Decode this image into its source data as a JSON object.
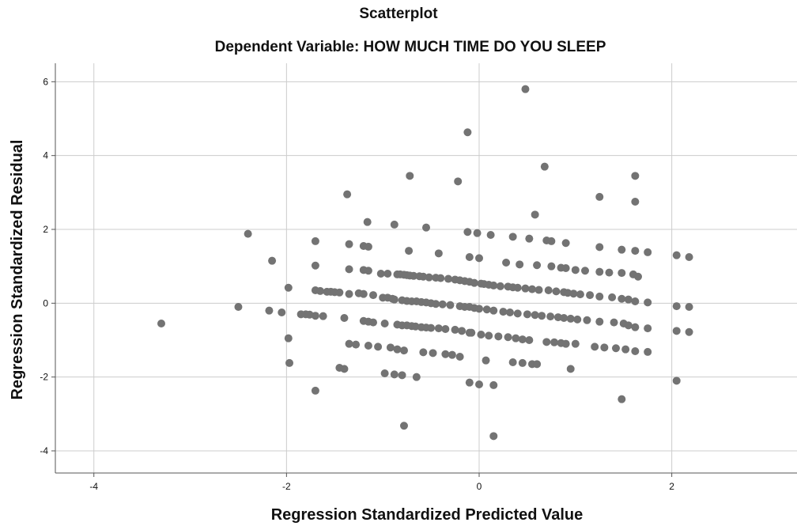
{
  "chart_data": {
    "type": "scatter",
    "title": "Scatterplot",
    "subtitle": "Dependent Variable: HOW MUCH TIME DO YOU SLEEP",
    "xlabel": "Regression Standardized Predicted Value",
    "ylabel": "Regression Standardized Residual",
    "xlim": [
      -4.4,
      3.3
    ],
    "ylim": [
      -4.6,
      6.5
    ],
    "x_ticks": [
      -4,
      -2,
      0,
      2
    ],
    "y_ticks": [
      -4,
      -2,
      0,
      2,
      4,
      6
    ],
    "x_tick_labels": [
      "-4",
      "-2",
      "0",
      "2"
    ],
    "y_tick_labels": [
      "-4",
      "-2",
      "0",
      "2",
      "4",
      "6"
    ],
    "grid": true,
    "marker_color": "#737373",
    "grid_color": "#cccccc",
    "axis_color": "#555555",
    "points": [
      [
        -3.3,
        -0.55
      ],
      [
        -2.5,
        -0.1
      ],
      [
        -2.4,
        1.88
      ],
      [
        -2.18,
        -0.2
      ],
      [
        -2.15,
        1.15
      ],
      [
        -2.05,
        -0.25
      ],
      [
        -1.98,
        0.42
      ],
      [
        -1.98,
        -0.95
      ],
      [
        -1.97,
        -1.62
      ],
      [
        -1.85,
        -0.3
      ],
      [
        -1.8,
        -0.3
      ],
      [
        -1.76,
        -0.31
      ],
      [
        -1.7,
        1.68
      ],
      [
        -1.7,
        1.02
      ],
      [
        -1.7,
        0.35
      ],
      [
        -1.7,
        -0.34
      ],
      [
        -1.7,
        -2.37
      ],
      [
        -1.65,
        0.33
      ],
      [
        -1.62,
        -0.35
      ],
      [
        -1.58,
        0.31
      ],
      [
        -1.54,
        0.31
      ],
      [
        -1.5,
        0.3
      ],
      [
        -1.45,
        0.29
      ],
      [
        -1.4,
        -0.4
      ],
      [
        -1.45,
        -1.75
      ],
      [
        -1.4,
        -1.78
      ],
      [
        -1.37,
        2.95
      ],
      [
        -1.35,
        1.6
      ],
      [
        -1.35,
        0.92
      ],
      [
        -1.35,
        0.25
      ],
      [
        -1.35,
        -1.1
      ],
      [
        -1.28,
        -1.12
      ],
      [
        -1.25,
        0.27
      ],
      [
        -1.2,
        0.25
      ],
      [
        -1.2,
        0.9
      ],
      [
        -1.2,
        1.55
      ],
      [
        -1.2,
        -0.48
      ],
      [
        -1.15,
        0.88
      ],
      [
        -1.15,
        1.53
      ],
      [
        -1.15,
        -0.5
      ],
      [
        -1.15,
        -1.15
      ],
      [
        -1.16,
        2.2
      ],
      [
        -1.1,
        0.22
      ],
      [
        -1.1,
        -0.52
      ],
      [
        -1.05,
        -1.18
      ],
      [
        -1.02,
        0.8
      ],
      [
        -1.0,
        0.15
      ],
      [
        -0.98,
        -0.55
      ],
      [
        -0.95,
        0.8
      ],
      [
        -0.98,
        -1.9
      ],
      [
        -0.95,
        0.15
      ],
      [
        -0.92,
        -1.2
      ],
      [
        -0.9,
        0.12
      ],
      [
        -0.88,
        -1.93
      ],
      [
        -0.88,
        0.1
      ],
      [
        -0.88,
        2.13
      ],
      [
        -0.85,
        0.78
      ],
      [
        -0.85,
        -0.58
      ],
      [
        -0.85,
        -1.25
      ],
      [
        -0.82,
        0.78
      ],
      [
        -0.8,
        0.08
      ],
      [
        -0.8,
        -0.6
      ],
      [
        -0.8,
        -1.95
      ],
      [
        -0.78,
        0.77
      ],
      [
        -0.78,
        -1.28
      ],
      [
        -0.78,
        -3.32
      ],
      [
        -0.75,
        0.76
      ],
      [
        -0.75,
        0.06
      ],
      [
        -0.75,
        -0.6
      ],
      [
        -0.73,
        1.42
      ],
      [
        -0.72,
        3.45
      ],
      [
        -0.72,
        0.75
      ],
      [
        -0.7,
        0.05
      ],
      [
        -0.7,
        -0.62
      ],
      [
        -0.68,
        0.74
      ],
      [
        -0.66,
        -0.63
      ],
      [
        -0.65,
        -2.0
      ],
      [
        -0.65,
        0.05
      ],
      [
        -0.62,
        0.73
      ],
      [
        -0.6,
        -0.65
      ],
      [
        -0.6,
        0.03
      ],
      [
        -0.58,
        -1.33
      ],
      [
        -0.58,
        0.72
      ],
      [
        -0.55,
        2.05
      ],
      [
        -0.55,
        0.02
      ],
      [
        -0.55,
        -0.66
      ],
      [
        -0.52,
        0.7
      ],
      [
        -0.5,
        0.0
      ],
      [
        -0.5,
        -0.67
      ],
      [
        -0.48,
        -1.35
      ],
      [
        -0.45,
        0.69
      ],
      [
        -0.45,
        -0.02
      ],
      [
        -0.42,
        -0.68
      ],
      [
        -0.42,
        1.35
      ],
      [
        -0.4,
        0.68
      ],
      [
        -0.38,
        -0.03
      ],
      [
        -0.35,
        -1.38
      ],
      [
        -0.35,
        -0.7
      ],
      [
        -0.32,
        0.66
      ],
      [
        -0.3,
        -0.05
      ],
      [
        -0.28,
        -1.4
      ],
      [
        -0.25,
        0.64
      ],
      [
        -0.25,
        -0.72
      ],
      [
        -0.22,
        3.3
      ],
      [
        -0.2,
        -0.08
      ],
      [
        -0.2,
        0.62
      ],
      [
        -0.2,
        -1.45
      ],
      [
        -0.18,
        -0.75
      ],
      [
        -0.15,
        0.6
      ],
      [
        -0.15,
        -0.1
      ],
      [
        -0.12,
        4.63
      ],
      [
        -0.12,
        1.93
      ],
      [
        -0.1,
        1.25
      ],
      [
        -0.1,
        0.58
      ],
      [
        -0.1,
        -0.1
      ],
      [
        -0.1,
        -0.8
      ],
      [
        -0.1,
        -2.15
      ],
      [
        -0.08,
        -0.8
      ],
      [
        -0.05,
        0.55
      ],
      [
        -0.05,
        -0.13
      ],
      [
        -0.02,
        1.9
      ],
      [
        0.0,
        1.22
      ],
      [
        0.0,
        -2.2
      ],
      [
        0.0,
        -0.15
      ],
      [
        0.02,
        0.53
      ],
      [
        0.02,
        -0.85
      ],
      [
        0.05,
        0.52
      ],
      [
        0.07,
        -1.55
      ],
      [
        0.08,
        -0.17
      ],
      [
        0.1,
        0.5
      ],
      [
        0.1,
        -0.88
      ],
      [
        0.12,
        1.85
      ],
      [
        0.15,
        -3.6
      ],
      [
        0.15,
        -2.22
      ],
      [
        0.15,
        0.48
      ],
      [
        0.15,
        -0.2
      ],
      [
        0.2,
        -0.9
      ],
      [
        0.22,
        0.46
      ],
      [
        0.25,
        -0.23
      ],
      [
        0.28,
        1.1
      ],
      [
        0.3,
        0.45
      ],
      [
        0.3,
        -0.92
      ],
      [
        0.32,
        -0.25
      ],
      [
        0.35,
        1.8
      ],
      [
        0.35,
        0.43
      ],
      [
        0.35,
        -1.6
      ],
      [
        0.38,
        -0.95
      ],
      [
        0.4,
        0.42
      ],
      [
        0.4,
        -0.28
      ],
      [
        0.42,
        1.05
      ],
      [
        0.45,
        -0.98
      ],
      [
        0.45,
        -1.62
      ],
      [
        0.48,
        5.8
      ],
      [
        0.48,
        0.4
      ],
      [
        0.5,
        -0.3
      ],
      [
        0.52,
        -1.0
      ],
      [
        0.52,
        1.75
      ],
      [
        0.55,
        -1.65
      ],
      [
        0.55,
        0.38
      ],
      [
        0.58,
        2.4
      ],
      [
        0.58,
        -0.32
      ],
      [
        0.6,
        1.03
      ],
      [
        0.6,
        -1.65
      ],
      [
        0.62,
        0.36
      ],
      [
        0.65,
        -0.34
      ],
      [
        0.68,
        3.7
      ],
      [
        0.7,
        1.7
      ],
      [
        0.7,
        -1.05
      ],
      [
        0.72,
        0.35
      ],
      [
        0.74,
        -0.36
      ],
      [
        0.75,
        1.68
      ],
      [
        0.75,
        1.0
      ],
      [
        0.78,
        -1.06
      ],
      [
        0.8,
        0.32
      ],
      [
        0.82,
        -0.38
      ],
      [
        0.85,
        0.96
      ],
      [
        0.85,
        -1.08
      ],
      [
        0.88,
        0.3
      ],
      [
        0.88,
        -0.4
      ],
      [
        0.9,
        1.63
      ],
      [
        0.9,
        0.95
      ],
      [
        0.9,
        -1.1
      ],
      [
        0.92,
        0.28
      ],
      [
        0.95,
        -0.42
      ],
      [
        0.95,
        -1.78
      ],
      [
        0.98,
        0.26
      ],
      [
        1.0,
        0.9
      ],
      [
        1.0,
        -1.1
      ],
      [
        1.02,
        -0.44
      ],
      [
        1.05,
        0.24
      ],
      [
        1.1,
        0.88
      ],
      [
        1.12,
        -0.46
      ],
      [
        1.15,
        0.22
      ],
      [
        1.2,
        -1.18
      ],
      [
        1.25,
        2.88
      ],
      [
        1.25,
        1.52
      ],
      [
        1.25,
        0.85
      ],
      [
        1.25,
        0.18
      ],
      [
        1.25,
        -0.5
      ],
      [
        1.3,
        -1.2
      ],
      [
        1.35,
        0.83
      ],
      [
        1.38,
        0.16
      ],
      [
        1.4,
        -0.52
      ],
      [
        1.42,
        -1.22
      ],
      [
        1.48,
        -2.6
      ],
      [
        1.48,
        1.45
      ],
      [
        1.48,
        0.82
      ],
      [
        1.48,
        0.12
      ],
      [
        1.5,
        -0.55
      ],
      [
        1.52,
        -1.25
      ],
      [
        1.55,
        0.1
      ],
      [
        1.55,
        -0.6
      ],
      [
        1.6,
        0.78
      ],
      [
        1.62,
        3.45
      ],
      [
        1.62,
        2.75
      ],
      [
        1.62,
        1.42
      ],
      [
        1.62,
        0.05
      ],
      [
        1.62,
        -0.65
      ],
      [
        1.62,
        -1.3
      ],
      [
        1.65,
        0.72
      ],
      [
        1.75,
        1.38
      ],
      [
        1.75,
        0.02
      ],
      [
        1.75,
        -0.68
      ],
      [
        1.75,
        -1.32
      ],
      [
        2.05,
        1.3
      ],
      [
        2.05,
        -0.08
      ],
      [
        2.05,
        -0.75
      ],
      [
        2.05,
        -2.1
      ],
      [
        2.18,
        1.25
      ],
      [
        2.18,
        -0.1
      ],
      [
        2.18,
        -0.78
      ]
    ]
  }
}
